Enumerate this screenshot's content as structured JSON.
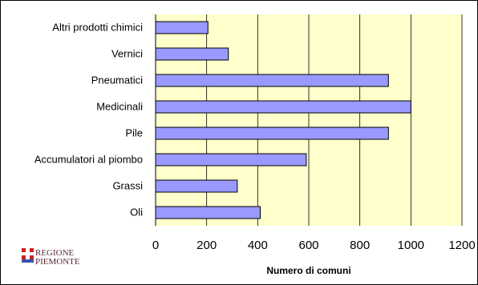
{
  "chart_data": {
    "type": "bar",
    "orientation": "horizontal",
    "title": "",
    "xlabel": "Numero di comuni",
    "ylabel": "",
    "categories": [
      "Altri prodotti chimici",
      "Vernici",
      "Pneumatici",
      "Medicinali",
      "Pile",
      "Accumulatori al piombo",
      "Grassi",
      "Oli"
    ],
    "series": [
      {
        "values": [
          205,
          285,
          912,
          1000,
          912,
          590,
          320,
          410
        ]
      }
    ],
    "xlim": [
      0,
      1200
    ],
    "xticks": [
      0,
      200,
      400,
      600,
      800,
      1000,
      1200
    ],
    "grid": "vertical",
    "legend": "none",
    "colors": {
      "bar_fill": "#9999ff",
      "bar_stroke": "#000000",
      "plot_background": "#ffffcc",
      "gridline": "#000000"
    }
  },
  "logo": {
    "line1": "REGIONE",
    "line2": "PIEMONTE",
    "icon": "piemonte-flag-icon",
    "colors": {
      "red": "#cc2222",
      "blue": "#3355aa",
      "text": "#5a2a3a"
    }
  }
}
